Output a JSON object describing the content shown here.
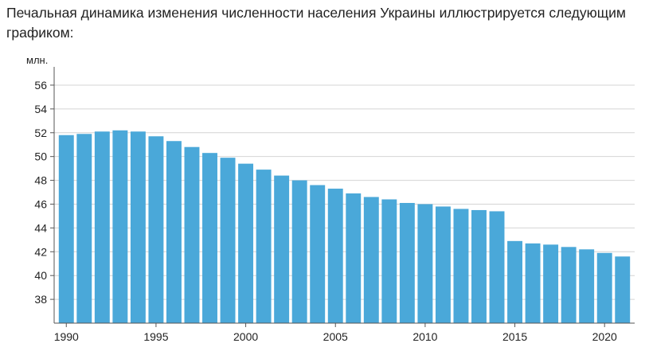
{
  "intro_text": "Печальная динамика изменения численности населения Украины иллюстрируется следующим графиком:",
  "colors": {
    "bar": "#4aa8d9",
    "grid": "#d4d4d4",
    "axis": "#555555",
    "text": "#222222"
  },
  "chart_data": {
    "type": "bar",
    "title": "",
    "ylabel": "млн.",
    "xlabel": "",
    "ylim": [
      36,
      57
    ],
    "yticks": [
      38,
      40,
      42,
      44,
      46,
      48,
      50,
      52,
      54,
      56
    ],
    "xtick_labels": [
      "1990",
      "1995",
      "2000",
      "2005",
      "2010",
      "2015",
      "2020"
    ],
    "categories": [
      1990,
      1991,
      1992,
      1993,
      1994,
      1995,
      1996,
      1997,
      1998,
      1999,
      2000,
      2001,
      2002,
      2003,
      2004,
      2005,
      2006,
      2007,
      2008,
      2009,
      2010,
      2011,
      2012,
      2013,
      2014,
      2015,
      2016,
      2017,
      2018,
      2019,
      2020,
      2021
    ],
    "values": [
      51.8,
      51.9,
      52.1,
      52.2,
      52.1,
      51.7,
      51.3,
      50.8,
      50.3,
      49.9,
      49.4,
      48.9,
      48.4,
      48.0,
      47.6,
      47.3,
      46.9,
      46.6,
      46.4,
      46.1,
      46.0,
      45.8,
      45.6,
      45.5,
      45.4,
      42.9,
      42.7,
      42.6,
      42.4,
      42.2,
      41.9,
      41.6
    ],
    "grid": true,
    "legend": "none"
  }
}
